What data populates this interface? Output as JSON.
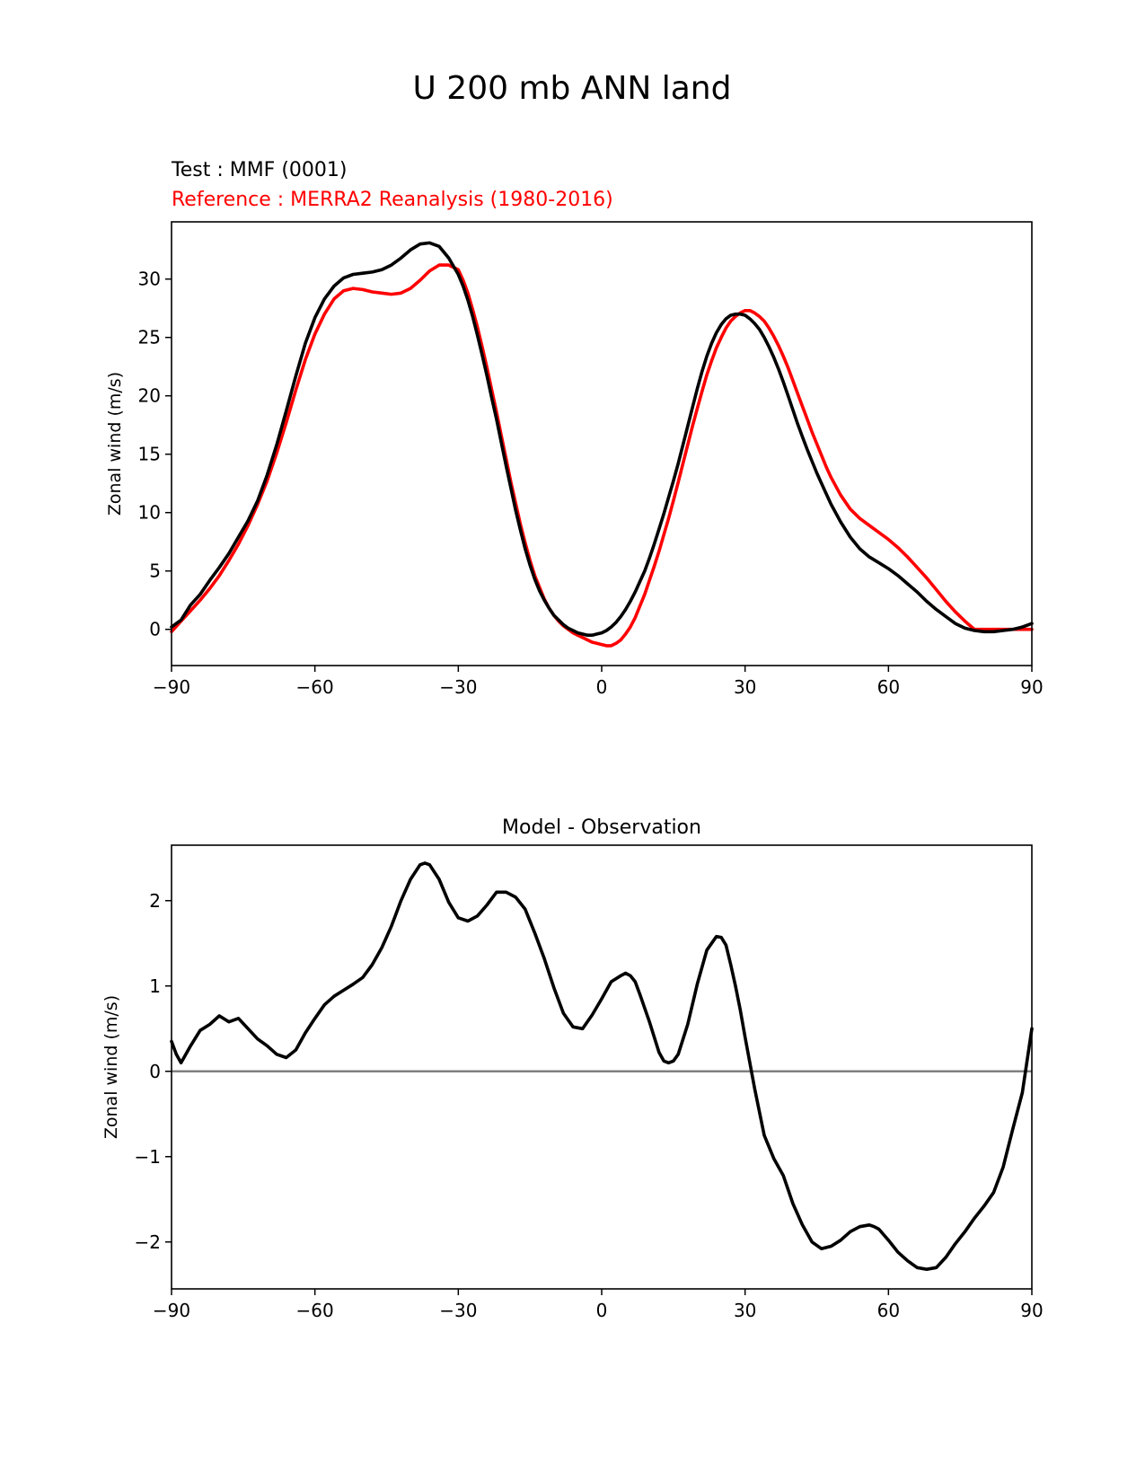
{
  "figure": {
    "title": "U 200 mb ANN land"
  },
  "colors": {
    "test": "#000000",
    "reference": "#ff0000",
    "zero_line": "#808080"
  },
  "chart_data": [
    {
      "type": "line",
      "test_label": "Test : MMF (0001)",
      "reference_label": "Reference : MERRA2 Reanalysis (1980-2016)",
      "xlabel": "",
      "ylabel": "Zonal wind (m/s)",
      "xlim": [
        -90,
        90
      ],
      "ylim": [
        -3.1,
        34.9
      ],
      "xticks": [
        -90,
        -60,
        -30,
        0,
        30,
        60,
        90
      ],
      "xtick_labels": [
        "−90",
        "−60",
        "−30",
        "0",
        "30",
        "60",
        "90"
      ],
      "yticks": [
        0,
        5,
        10,
        15,
        20,
        25,
        30
      ],
      "ytick_labels": [
        "0",
        "5",
        "10",
        "15",
        "20",
        "25",
        "30"
      ],
      "series": [
        {
          "key": "test",
          "color": "#000000",
          "x": [
            -90,
            -88,
            -86,
            -84,
            -82,
            -80,
            -78,
            -76,
            -74,
            -72,
            -70,
            -68,
            -66,
            -64,
            -62,
            -60,
            -58,
            -56,
            -54,
            -52,
            -50,
            -48,
            -46,
            -44,
            -42,
            -40,
            -38,
            -36,
            -34,
            -32,
            -30,
            -29,
            -28,
            -27,
            -26,
            -25,
            -24,
            -23,
            -22,
            -21,
            -20,
            -19,
            -18,
            -17,
            -16,
            -15,
            -14,
            -13,
            -12,
            -11,
            -10,
            -9,
            -8,
            -7,
            -6,
            -5,
            -4,
            -3,
            -2,
            -1,
            0,
            1,
            2,
            3,
            4,
            5,
            6,
            7,
            8,
            9,
            10,
            11,
            12,
            13,
            14,
            15,
            16,
            17,
            18,
            19,
            20,
            21,
            22,
            23,
            24,
            25,
            26,
            27,
            28,
            29,
            30,
            31,
            32,
            33,
            34,
            35,
            36,
            37,
            38,
            39,
            40,
            41,
            42,
            43,
            44,
            45,
            46,
            47,
            48,
            50,
            52,
            54,
            56,
            58,
            60,
            62,
            64,
            66,
            68,
            70,
            72,
            74,
            76,
            78,
            80,
            82,
            84,
            86,
            88,
            90
          ],
          "y": [
            0.2,
            0.8,
            2.1,
            3.0,
            4.2,
            5.3,
            6.5,
            7.9,
            9.3,
            11.0,
            13.2,
            15.8,
            18.7,
            21.7,
            24.5,
            26.7,
            28.3,
            29.4,
            30.1,
            30.4,
            30.5,
            30.6,
            30.8,
            31.2,
            31.8,
            32.5,
            33.0,
            33.1,
            32.8,
            31.8,
            30.4,
            29.4,
            28.2,
            26.8,
            25.2,
            23.5,
            21.7,
            19.8,
            18.0,
            16.0,
            14.0,
            12.1,
            10.2,
            8.5,
            6.9,
            5.5,
            4.3,
            3.3,
            2.5,
            1.8,
            1.2,
            0.8,
            0.4,
            0.1,
            -0.1,
            -0.3,
            -0.4,
            -0.5,
            -0.5,
            -0.4,
            -0.3,
            -0.1,
            0.2,
            0.6,
            1.1,
            1.7,
            2.4,
            3.2,
            4.1,
            5.0,
            6.1,
            7.3,
            8.6,
            9.9,
            11.3,
            12.7,
            14.2,
            15.8,
            17.4,
            19.0,
            20.6,
            22.1,
            23.4,
            24.5,
            25.4,
            26.1,
            26.6,
            26.9,
            27.0,
            27.0,
            26.9,
            26.6,
            26.2,
            25.7,
            25.0,
            24.2,
            23.3,
            22.3,
            21.2,
            20.0,
            18.8,
            17.6,
            16.5,
            15.4,
            14.4,
            13.4,
            12.5,
            11.6,
            10.7,
            9.2,
            7.9,
            6.9,
            6.2,
            5.7,
            5.2,
            4.6,
            3.9,
            3.2,
            2.4,
            1.7,
            1.1,
            0.5,
            0.1,
            -0.1,
            -0.2,
            -0.2,
            -0.1,
            0.0,
            0.2,
            0.5
          ]
        },
        {
          "key": "reference",
          "color": "#ff0000",
          "x": [
            -90,
            -88,
            -86,
            -84,
            -82,
            -80,
            -78,
            -76,
            -74,
            -72,
            -70,
            -68,
            -66,
            -64,
            -62,
            -60,
            -58,
            -56,
            -54,
            -52,
            -50,
            -48,
            -46,
            -44,
            -42,
            -40,
            -38,
            -36,
            -34,
            -32,
            -30,
            -29,
            -28,
            -27,
            -26,
            -25,
            -24,
            -23,
            -22,
            -21,
            -20,
            -19,
            -18,
            -17,
            -16,
            -15,
            -14,
            -13,
            -12,
            -11,
            -10,
            -9,
            -8,
            -7,
            -6,
            -5,
            -4,
            -3,
            -2,
            -1,
            0,
            1,
            2,
            3,
            4,
            5,
            6,
            7,
            8,
            9,
            10,
            11,
            12,
            13,
            14,
            15,
            16,
            17,
            18,
            19,
            20,
            21,
            22,
            23,
            24,
            25,
            26,
            27,
            28,
            29,
            30,
            31,
            32,
            33,
            34,
            35,
            36,
            37,
            38,
            39,
            40,
            41,
            42,
            43,
            44,
            45,
            46,
            47,
            48,
            50,
            52,
            54,
            56,
            58,
            60,
            62,
            64,
            66,
            68,
            70,
            72,
            74,
            76,
            78,
            80,
            82,
            84,
            86,
            88,
            90
          ],
          "y": [
            -0.2,
            0.7,
            1.6,
            2.5,
            3.5,
            4.6,
            5.9,
            7.3,
            8.9,
            10.7,
            12.7,
            15.1,
            17.7,
            20.5,
            23.1,
            25.3,
            27.0,
            28.3,
            29.0,
            29.2,
            29.1,
            28.9,
            28.8,
            28.7,
            28.8,
            29.2,
            29.9,
            30.7,
            31.2,
            31.2,
            30.8,
            29.9,
            28.8,
            27.4,
            25.9,
            24.2,
            22.4,
            20.5,
            18.6,
            16.6,
            14.6,
            12.6,
            10.8,
            9.0,
            7.4,
            5.9,
            4.6,
            3.6,
            2.6,
            1.8,
            1.2,
            0.7,
            0.3,
            0.0,
            -0.3,
            -0.5,
            -0.7,
            -0.9,
            -1.1,
            -1.2,
            -1.3,
            -1.4,
            -1.4,
            -1.2,
            -0.9,
            -0.4,
            0.2,
            1.0,
            2.0,
            3.0,
            4.2,
            5.4,
            6.7,
            8.1,
            9.5,
            11.0,
            12.6,
            14.2,
            15.8,
            17.4,
            18.9,
            20.4,
            21.8,
            23.0,
            24.1,
            25.0,
            25.8,
            26.4,
            26.8,
            27.1,
            27.3,
            27.3,
            27.1,
            26.8,
            26.4,
            25.8,
            25.1,
            24.3,
            23.4,
            22.4,
            21.3,
            20.2,
            19.1,
            18.0,
            16.9,
            15.9,
            14.9,
            13.9,
            13.0,
            11.5,
            10.3,
            9.5,
            8.9,
            8.3,
            7.7,
            7.0,
            6.2,
            5.3,
            4.4,
            3.4,
            2.4,
            1.5,
            0.7,
            0.0,
            0.0,
            0.0,
            0.0,
            0.0,
            0.0,
            0.0
          ]
        }
      ]
    },
    {
      "type": "line",
      "title": "Model - Observation",
      "xlabel": "",
      "ylabel": "Zonal wind (m/s)",
      "xlim": [
        -90,
        90
      ],
      "ylim": [
        -2.55,
        2.65
      ],
      "xticks": [
        -90,
        -60,
        -30,
        0,
        30,
        60,
        90
      ],
      "xtick_labels": [
        "−90",
        "−60",
        "−30",
        "0",
        "30",
        "60",
        "90"
      ],
      "yticks": [
        -2,
        -1,
        0,
        1,
        2
      ],
      "ytick_labels": [
        "−2",
        "−1",
        "0",
        "1",
        "2"
      ],
      "zero_line": 0,
      "series": [
        {
          "key": "difference",
          "color": "#000000",
          "x": [
            -90,
            -89,
            -88,
            -86,
            -84,
            -82,
            -80,
            -78,
            -76,
            -74,
            -72,
            -70,
            -68,
            -66,
            -64,
            -62,
            -60,
            -58,
            -56,
            -54,
            -52,
            -50,
            -48,
            -46,
            -44,
            -42,
            -40,
            -38,
            -37,
            -36,
            -34,
            -32,
            -30,
            -28,
            -26,
            -24,
            -22,
            -20,
            -18,
            -16,
            -14,
            -12,
            -10,
            -8,
            -6,
            -4,
            -2,
            0,
            2,
            4,
            5,
            6,
            7,
            8,
            10,
            12,
            13,
            14,
            15,
            16,
            18,
            20,
            22,
            24,
            25,
            26,
            27,
            28,
            29,
            30,
            32,
            34,
            36,
            38,
            40,
            42,
            44,
            46,
            48,
            50,
            52,
            54,
            56,
            57,
            58,
            60,
            62,
            64,
            66,
            68,
            70,
            72,
            74,
            76,
            78,
            80,
            82,
            84,
            86,
            88,
            90
          ],
          "y": [
            0.35,
            0.2,
            0.1,
            0.3,
            0.48,
            0.55,
            0.65,
            0.58,
            0.62,
            0.5,
            0.38,
            0.3,
            0.2,
            0.16,
            0.25,
            0.45,
            0.62,
            0.78,
            0.88,
            0.95,
            1.02,
            1.1,
            1.25,
            1.45,
            1.7,
            2.0,
            2.25,
            2.42,
            2.44,
            2.42,
            2.25,
            1.98,
            1.8,
            1.76,
            1.82,
            1.95,
            2.1,
            2.1,
            2.04,
            1.9,
            1.62,
            1.32,
            0.98,
            0.68,
            0.52,
            0.5,
            0.66,
            0.85,
            1.05,
            1.12,
            1.15,
            1.12,
            1.05,
            0.9,
            0.58,
            0.22,
            0.12,
            0.1,
            0.12,
            0.2,
            0.55,
            1.02,
            1.42,
            1.58,
            1.57,
            1.48,
            1.25,
            1.0,
            0.72,
            0.4,
            -0.2,
            -0.75,
            -1.02,
            -1.22,
            -1.55,
            -1.8,
            -2.0,
            -2.08,
            -2.05,
            -1.98,
            -1.88,
            -1.82,
            -1.8,
            -1.82,
            -1.85,
            -1.98,
            -2.12,
            -2.22,
            -2.3,
            -2.32,
            -2.3,
            -2.18,
            -2.02,
            -1.88,
            -1.72,
            -1.58,
            -1.42,
            -1.12,
            -0.68,
            -0.25,
            0.5
          ]
        }
      ]
    }
  ]
}
